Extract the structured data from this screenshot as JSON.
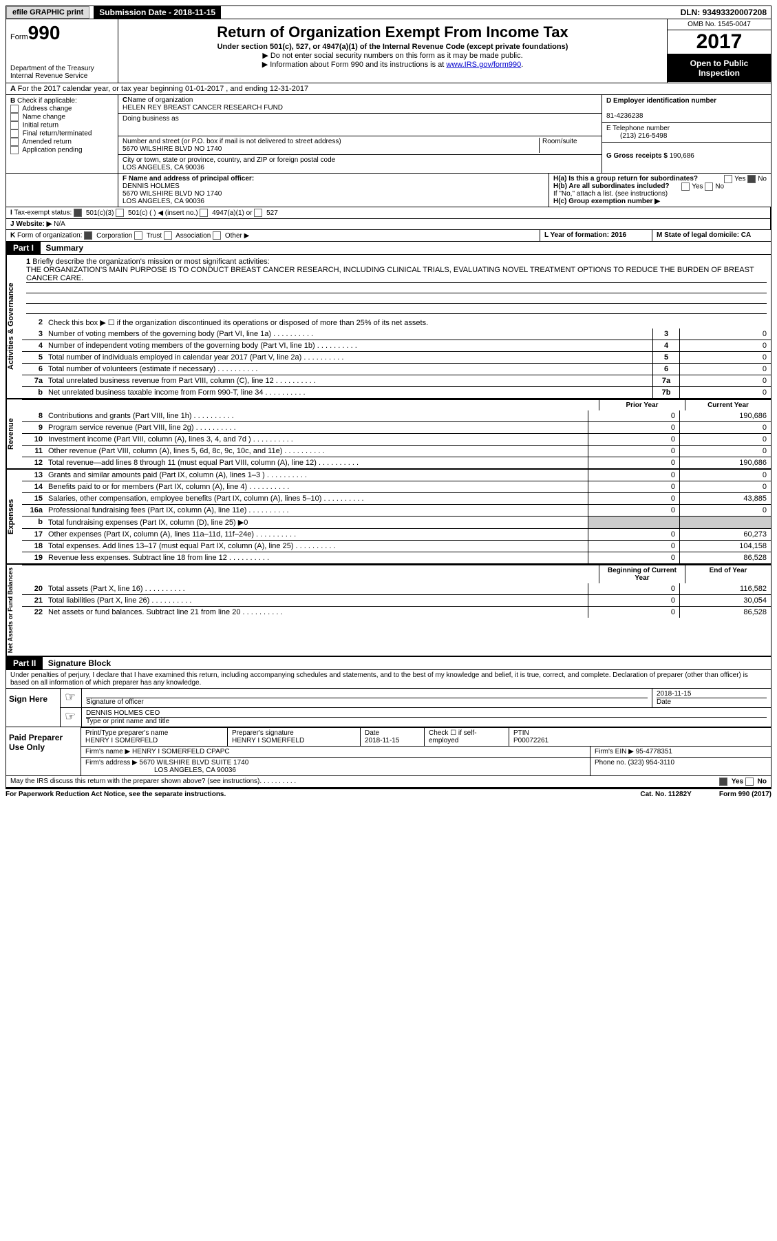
{
  "top": {
    "efile": "efile GRAPHIC print",
    "submission": "Submission Date - 2018-11-15",
    "dln": "DLN: 93493320007208"
  },
  "header": {
    "form_prefix": "Form",
    "form_num": "990",
    "dept": "Department of the Treasury",
    "irs": "Internal Revenue Service",
    "title": "Return of Organization Exempt From Income Tax",
    "subtitle": "Under section 501(c), 527, or 4947(a)(1) of the Internal Revenue Code (except private foundations)",
    "note1": "▶ Do not enter social security numbers on this form as it may be made public.",
    "note2_prefix": "▶ Information about Form 990 and its instructions is at ",
    "note2_link": "www.IRS.gov/form990",
    "omb": "OMB No. 1545-0047",
    "year": "2017",
    "open": "Open to Public Inspection"
  },
  "a_line": "For the 2017 calendar year, or tax year beginning 01-01-2017   , and ending 12-31-2017",
  "box_b": {
    "title": "Check if applicable:",
    "opts": [
      "Address change",
      "Name change",
      "Initial return",
      "Final return/terminated",
      "Amended return",
      "Application pending"
    ]
  },
  "box_c": {
    "name_label": "Name of organization",
    "name": "HELEN REY BREAST CANCER RESEARCH FUND",
    "dba_label": "Doing business as",
    "addr_label": "Number and street (or P.O. box if mail is not delivered to street address)",
    "room_label": "Room/suite",
    "addr": "5670 WILSHIRE BLVD NO 1740",
    "city_label": "City or town, state or province, country, and ZIP or foreign postal code",
    "city": "LOS ANGELES, CA  90036"
  },
  "box_d": {
    "ein_label": "D Employer identification number",
    "ein": "81-4236238",
    "tel_label": "E Telephone number",
    "tel": "(213) 216-5498",
    "gross_label": "G Gross receipts $",
    "gross": "190,686"
  },
  "box_f": {
    "label": "F  Name and address of principal officer:",
    "name": "DENNIS HOLMES",
    "addr1": "5670 WILSHIRE BLVD NO 1740",
    "addr2": "LOS ANGELES, CA  90036"
  },
  "box_h": {
    "ha": "H(a)  Is this a group return for subordinates?",
    "hb": "H(b)  Are all subordinates included?",
    "hb_note": "If \"No,\" attach a list. (see instructions)",
    "hc": "H(c)  Group exemption number ▶",
    "yes": "Yes",
    "no": "No"
  },
  "line_i": "Tax-exempt status:",
  "line_i_opts": [
    "501(c)(3)",
    "501(c) (  ) ◀ (insert no.)",
    "4947(a)(1) or",
    "527"
  ],
  "line_j": "Website: ▶",
  "line_j_val": "N/A",
  "line_k": "Form of organization:",
  "line_k_opts": [
    "Corporation",
    "Trust",
    "Association",
    "Other ▶"
  ],
  "line_l": "L Year of formation: 2016",
  "line_m": "M State of legal domicile: CA",
  "part1": {
    "tab": "Part I",
    "title": "Summary",
    "mission_label": "Briefly describe the organization's mission or most significant activities:",
    "mission": "THE ORGANIZATION'S MAIN PURPOSE IS TO CONDUCT BREAST CANCER RESEARCH, INCLUDING CLINICAL TRIALS, EVALUATING NOVEL TREATMENT OPTIONS TO REDUCE THE BURDEN OF BREAST CANCER CARE.",
    "line2": "Check this box ▶ ☐  if the organization discontinued its operations or disposed of more than 25% of its net assets.",
    "gov": [
      {
        "n": "3",
        "d": "Number of voting members of the governing body (Part VI, line 1a)",
        "b": "3",
        "v": "0"
      },
      {
        "n": "4",
        "d": "Number of independent voting members of the governing body (Part VI, line 1b)",
        "b": "4",
        "v": "0"
      },
      {
        "n": "5",
        "d": "Total number of individuals employed in calendar year 2017 (Part V, line 2a)",
        "b": "5",
        "v": "0"
      },
      {
        "n": "6",
        "d": "Total number of volunteers (estimate if necessary)",
        "b": "6",
        "v": "0"
      },
      {
        "n": "7a",
        "d": "Total unrelated business revenue from Part VIII, column (C), line 12",
        "b": "7a",
        "v": "0"
      },
      {
        "n": "b",
        "d": "Net unrelated business taxable income from Form 990-T, line 34",
        "b": "7b",
        "v": "0"
      }
    ],
    "prior": "Prior Year",
    "current": "Current Year",
    "rev": [
      {
        "n": "8",
        "d": "Contributions and grants (Part VIII, line 1h)",
        "p": "0",
        "c": "190,686"
      },
      {
        "n": "9",
        "d": "Program service revenue (Part VIII, line 2g)",
        "p": "0",
        "c": "0"
      },
      {
        "n": "10",
        "d": "Investment income (Part VIII, column (A), lines 3, 4, and 7d )",
        "p": "0",
        "c": "0"
      },
      {
        "n": "11",
        "d": "Other revenue (Part VIII, column (A), lines 5, 6d, 8c, 9c, 10c, and 11e)",
        "p": "0",
        "c": "0"
      },
      {
        "n": "12",
        "d": "Total revenue—add lines 8 through 11 (must equal Part VIII, column (A), line 12)",
        "p": "0",
        "c": "190,686"
      }
    ],
    "exp": [
      {
        "n": "13",
        "d": "Grants and similar amounts paid (Part IX, column (A), lines 1–3 )",
        "p": "0",
        "c": "0"
      },
      {
        "n": "14",
        "d": "Benefits paid to or for members (Part IX, column (A), line 4)",
        "p": "0",
        "c": "0"
      },
      {
        "n": "15",
        "d": "Salaries, other compensation, employee benefits (Part IX, column (A), lines 5–10)",
        "p": "0",
        "c": "43,885"
      },
      {
        "n": "16a",
        "d": "Professional fundraising fees (Part IX, column (A), line 11e)",
        "p": "0",
        "c": "0"
      },
      {
        "n": "b",
        "d": "Total fundraising expenses (Part IX, column (D), line 25) ▶0",
        "p": "",
        "c": "",
        "shade": true
      },
      {
        "n": "17",
        "d": "Other expenses (Part IX, column (A), lines 11a–11d, 11f–24e)",
        "p": "0",
        "c": "60,273"
      },
      {
        "n": "18",
        "d": "Total expenses. Add lines 13–17 (must equal Part IX, column (A), line 25)",
        "p": "0",
        "c": "104,158"
      },
      {
        "n": "19",
        "d": "Revenue less expenses. Subtract line 18 from line 12",
        "p": "0",
        "c": "86,528"
      }
    ],
    "boy": "Beginning of Current Year",
    "eoy": "End of Year",
    "net": [
      {
        "n": "20",
        "d": "Total assets (Part X, line 16)",
        "p": "0",
        "c": "116,582"
      },
      {
        "n": "21",
        "d": "Total liabilities (Part X, line 26)",
        "p": "0",
        "c": "30,054"
      },
      {
        "n": "22",
        "d": "Net assets or fund balances. Subtract line 21 from line 20",
        "p": "0",
        "c": "86,528"
      }
    ]
  },
  "part2": {
    "tab": "Part II",
    "title": "Signature Block",
    "jurat": "Under penalties of perjury, I declare that I have examined this return, including accompanying schedules and statements, and to the best of my knowledge and belief, it is true, correct, and complete. Declaration of preparer (other than officer) is based on all information of which preparer has any knowledge.",
    "sign_here": "Sign Here",
    "sig_officer": "Signature of officer",
    "date": "Date",
    "sig_date": "2018-11-15",
    "officer_name": "DENNIS HOLMES CEO",
    "type_name": "Type or print name and title",
    "paid": "Paid Preparer Use Only",
    "prep_name_label": "Print/Type preparer's name",
    "prep_name": "HENRY I SOMERFELD",
    "prep_sig_label": "Preparer's signature",
    "prep_sig": "HENRY I SOMERFELD",
    "prep_date_label": "Date",
    "prep_date": "2018-11-15",
    "check_if": "Check ☐ if self-employed",
    "ptin_label": "PTIN",
    "ptin": "P00072261",
    "firm_name_label": "Firm's name    ▶",
    "firm_name": "HENRY I SOMERFELD CPAPC",
    "firm_ein_label": "Firm's EIN ▶",
    "firm_ein": "95-4778351",
    "firm_addr_label": "Firm's address ▶",
    "firm_addr": "5670 WILSHIRE BLVD SUITE 1740",
    "firm_city": "LOS ANGELES, CA  90036",
    "phone_label": "Phone no.",
    "phone": "(323) 954-3110",
    "discuss": "May the IRS discuss this return with the preparer shown above? (see instructions)",
    "yes": "Yes",
    "no": "No"
  },
  "footer": {
    "pra": "For Paperwork Reduction Act Notice, see the separate instructions.",
    "cat": "Cat. No. 11282Y",
    "form": "Form 990 (2017)"
  }
}
